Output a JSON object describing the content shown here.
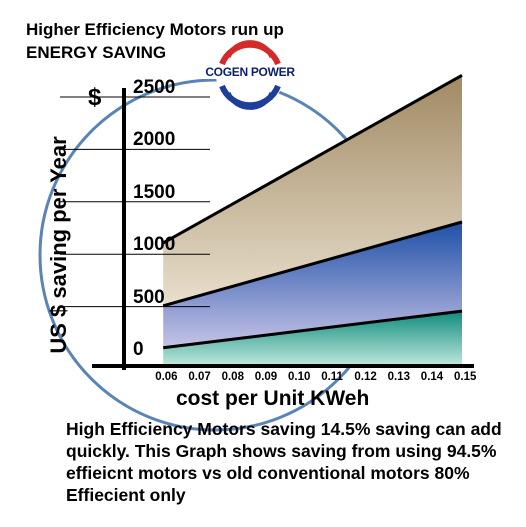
{
  "page": {
    "title_line1": "Higher Efficiency Motors run up",
    "title_line2": "ENERGY SAVING",
    "caption": "High Efficiency Motors saving 14.5% saving can add quickly. This Graph shows saving from using 94.5% effieicnt motors vs old conventional motors 80% Effiecient only",
    "logo_text": "COGEN POWER"
  },
  "chart_data": {
    "type": "area",
    "xlabel": "cost per Unit KWeh",
    "ylabel": "US $ saving per Year",
    "y_currency": "$",
    "x_ticks": [
      "0.06",
      "0.07",
      "0.08",
      "0.09",
      "0.10",
      "0.11",
      "0.12",
      "0.13",
      "0.14",
      "0.15"
    ],
    "y_ticks": [
      "0",
      "500",
      "1000",
      "1500",
      "2000",
      "2500"
    ],
    "x": [
      0.06,
      0.15
    ],
    "ylim": [
      0,
      2500
    ],
    "xlim": [
      0.05,
      0.15
    ],
    "series": [
      {
        "values": [
          1050,
          2650
        ]
      },
      {
        "values": [
          450,
          1250
        ]
      },
      {
        "values": [
          50,
          400
        ]
      }
    ],
    "colors": {
      "top_band": "#b39b73",
      "middle_band": "#2456a8",
      "bottom_band": "#1a9a8a",
      "axis": "#000000",
      "logo_red": "#d32a2a",
      "logo_blue": "#1d3e9a",
      "circle": "#3c6fa8"
    }
  }
}
